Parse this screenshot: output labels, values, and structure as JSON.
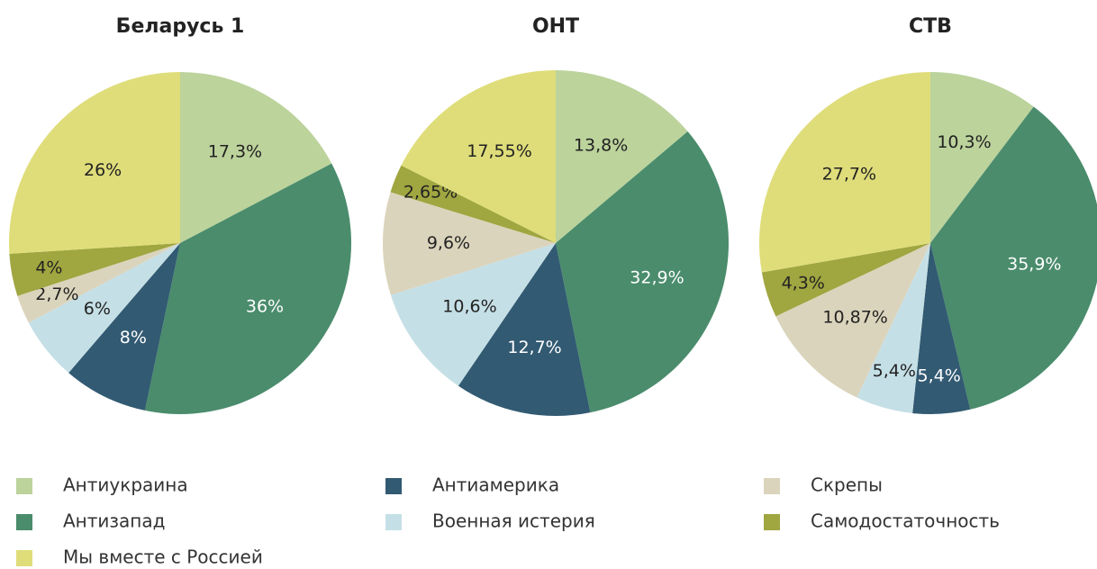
{
  "legend": {
    "names": [
      "Антиукраина",
      "Антизапад",
      "Антиамерика",
      "Военная истерия",
      "Скрепы",
      "Самодостаточность",
      "Мы вместе с Россией"
    ],
    "colors": [
      "#bcd39c",
      "#4a8c6c",
      "#325a72",
      "#c5dfe6",
      "#dbd4bc",
      "#a0a640",
      "#dfdd7a"
    ]
  },
  "chart_data": [
    {
      "type": "pie",
      "title": "Беларусь 1",
      "values": [
        17.3,
        36,
        8,
        6,
        2.7,
        4,
        26
      ],
      "value_labels": [
        "17,3%",
        "36%",
        "8%",
        "6%",
        "2,7%",
        "4%",
        "26%"
      ]
    },
    {
      "type": "pie",
      "title": "ОНТ",
      "values": [
        13.8,
        32.9,
        12.7,
        10.6,
        9.6,
        2.65,
        17.55
      ],
      "value_labels": [
        "13,8%",
        "32,9%",
        "12,7%",
        "10,6%",
        "9,6%",
        "2,65%",
        "17,55%"
      ]
    },
    {
      "type": "pie",
      "title": "СТВ",
      "values": [
        10.3,
        35.9,
        5.4,
        5.4,
        10.87,
        4.3,
        27.7
      ],
      "value_labels": [
        "10,3%",
        "35,9%",
        "5,4%",
        "5,4%",
        "10,87%",
        "4,3%",
        "27,7%"
      ]
    }
  ]
}
